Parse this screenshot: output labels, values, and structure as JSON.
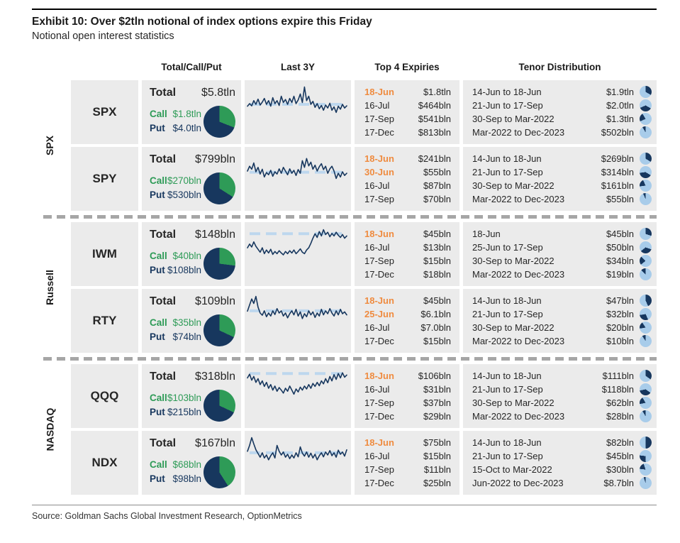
{
  "exhibit": {
    "title": "Exhibit 10: Over $2tln notional of index options expire this Friday",
    "subtitle": "Notional open interest statistics",
    "source": "Source: Goldman Sachs Global Investment Research, OptionMetrics"
  },
  "table_headers": {
    "tcp": "Total/Call/Put",
    "chart": "Last 3Y",
    "expiries": "Top 4 Expiries",
    "tenor": "Tenor Distribution"
  },
  "labels": {
    "total": "Total",
    "call": "Call",
    "put": "Put"
  },
  "colors": {
    "call_green": "#2E9B57",
    "put_navy": "#17375E",
    "highlight_orange": "#EF8B3F",
    "pie_light": "#A8CCEA",
    "ref_blue": "#BDD7EE",
    "cell_bg": "#EBEBEB",
    "separator_gray": "#A6A6A6"
  },
  "chart_data": {
    "type": "table",
    "groups": [
      {
        "label": "SPX"
      },
      {
        "label": "Russell"
      },
      {
        "label": "NASDAQ"
      }
    ],
    "rows": [
      {
        "ticker": "SPX",
        "total": "$5.8tln",
        "call": "$1.8tln",
        "put": "$4.0tln",
        "call_frac": 0.31,
        "expiries": [
          {
            "date": "18-Jun",
            "value": "$1.8tln",
            "highlight": true
          },
          {
            "date": "16-Jul",
            "value": "$464bln",
            "highlight": false
          },
          {
            "date": "17-Sep",
            "value": "$541bln",
            "highlight": false
          },
          {
            "date": "17-Dec",
            "value": "$813bln",
            "highlight": false
          }
        ],
        "tenors": [
          {
            "label": "14-Jun to 18-Jun",
            "value": "$1.9tln"
          },
          {
            "label": "21-Jun to 17-Sep",
            "value": "$2.0tln"
          },
          {
            "label": "30-Sep to Mar-2022",
            "value": "$1.3tln"
          },
          {
            "label": "Mar-2022 to Dec-2023",
            "value": "$502bln"
          }
        ],
        "tenor_fracs": [
          0.333,
          0.351,
          0.228,
          0.088
        ],
        "spark_ref": 0.5,
        "spark": [
          0.45,
          0.52,
          0.46,
          0.6,
          0.5,
          0.64,
          0.48,
          0.56,
          0.66,
          0.5,
          0.6,
          0.45,
          0.68,
          0.52,
          0.6,
          0.47,
          0.72,
          0.55,
          0.63,
          0.5,
          0.66,
          0.55,
          0.72,
          0.52,
          0.62,
          0.78,
          0.55,
          0.97,
          0.6,
          0.72,
          0.5,
          0.58,
          0.42,
          0.52,
          0.38,
          0.47,
          0.34,
          0.48,
          0.4,
          0.53,
          0.34,
          0.43,
          0.28,
          0.45,
          0.37,
          0.5,
          0.4,
          0.46
        ]
      },
      {
        "ticker": "SPY",
        "total": "$799bln",
        "call": "$270bln",
        "put": "$530bln",
        "call_frac": 0.34,
        "expiries": [
          {
            "date": "18-Jun",
            "value": "$241bln",
            "highlight": true
          },
          {
            "date": "30-Jun",
            "value": "$55bln",
            "highlight": true
          },
          {
            "date": "16-Jul",
            "value": "$87bln",
            "highlight": false
          },
          {
            "date": "17-Sep",
            "value": "$70bln",
            "highlight": false
          }
        ],
        "tenors": [
          {
            "label": "14-Jun to 18-Jun",
            "value": "$269bln"
          },
          {
            "label": "21-Jun to 17-Sep",
            "value": "$314bln"
          },
          {
            "label": "30-Sep to Mar-2022",
            "value": "$161bln"
          },
          {
            "label": "Mar-2022 to Dec-2023",
            "value": "$55bln"
          }
        ],
        "tenor_fracs": [
          0.337,
          0.393,
          0.202,
          0.068
        ],
        "spark_ref": 0.47,
        "spark": [
          0.5,
          0.63,
          0.55,
          0.72,
          0.48,
          0.6,
          0.42,
          0.55,
          0.34,
          0.46,
          0.4,
          0.52,
          0.36,
          0.48,
          0.42,
          0.56,
          0.44,
          0.6,
          0.5,
          0.4,
          0.56,
          0.44,
          0.52,
          0.38,
          0.54,
          0.44,
          0.78,
          0.6,
          0.84,
          0.64,
          0.74,
          0.55,
          0.66,
          0.5,
          0.62,
          0.7,
          0.54,
          0.63,
          0.44,
          0.56,
          0.63,
          0.5,
          0.3,
          0.44,
          0.34,
          0.48,
          0.38,
          0.44
        ]
      },
      {
        "ticker": "IWM",
        "total": "$148bln",
        "call": "$40bln",
        "put": "$108bln",
        "call_frac": 0.27,
        "expiries": [
          {
            "date": "18-Jun",
            "value": "$45bln",
            "highlight": true
          },
          {
            "date": "16-Jul",
            "value": "$13bln",
            "highlight": false
          },
          {
            "date": "17-Sep",
            "value": "$15bln",
            "highlight": false
          },
          {
            "date": "17-Dec",
            "value": "$18bln",
            "highlight": false
          }
        ],
        "tenors": [
          {
            "label": "18-Jun",
            "value": "$45bln"
          },
          {
            "label": "25-Jun to 17-Sep",
            "value": "$50bln"
          },
          {
            "label": "30-Sep to Mar-2022",
            "value": "$34bln"
          },
          {
            "label": "Mar-2022 to Dec-2023",
            "value": "$19bln"
          }
        ],
        "tenor_fracs": [
          0.304,
          0.338,
          0.23,
          0.128
        ],
        "spark_ref": 0.84,
        "spark": [
          0.46,
          0.56,
          0.48,
          0.62,
          0.5,
          0.42,
          0.34,
          0.46,
          0.3,
          0.4,
          0.32,
          0.42,
          0.28,
          0.36,
          0.3,
          0.38,
          0.32,
          0.27,
          0.36,
          0.3,
          0.38,
          0.32,
          0.4,
          0.3,
          0.36,
          0.43,
          0.34,
          0.3,
          0.4,
          0.46,
          0.58,
          0.72,
          0.84,
          0.74,
          0.9,
          0.78,
          0.95,
          0.82,
          0.88,
          0.76,
          0.85,
          0.78,
          0.88,
          0.8,
          0.74,
          0.82,
          0.72,
          0.78
        ]
      },
      {
        "ticker": "RTY",
        "total": "$109bln",
        "call": "$35bln",
        "put": "$74bln",
        "call_frac": 0.32,
        "expiries": [
          {
            "date": "18-Jun",
            "value": "$45bln",
            "highlight": true
          },
          {
            "date": "25-Jun",
            "value": "$6.1bln",
            "highlight": true
          },
          {
            "date": "16-Jul",
            "value": "$7.0bln",
            "highlight": false
          },
          {
            "date": "17-Dec",
            "value": "$15bln",
            "highlight": false
          }
        ],
        "tenors": [
          {
            "label": "14-Jun to 18-Jun",
            "value": "$47bln"
          },
          {
            "label": "21-Jun to 17-Sep",
            "value": "$32bln"
          },
          {
            "label": "30-Sep to Mar-2022",
            "value": "$20bln"
          },
          {
            "label": "Mar-2022 to Dec-2023",
            "value": "$10bln"
          }
        ],
        "tenor_fracs": [
          0.431,
          0.294,
          0.183,
          0.092
        ],
        "spark_ref": 0.56,
        "spark": [
          0.55,
          0.72,
          0.88,
          0.76,
          0.95,
          0.66,
          0.5,
          0.44,
          0.56,
          0.4,
          0.5,
          0.42,
          0.56,
          0.46,
          0.62,
          0.5,
          0.56,
          0.42,
          0.5,
          0.37,
          0.48,
          0.56,
          0.45,
          0.6,
          0.42,
          0.53,
          0.35,
          0.48,
          0.4,
          0.56,
          0.45,
          0.53,
          0.38,
          0.5,
          0.42,
          0.6,
          0.45,
          0.56,
          0.48,
          0.62,
          0.5,
          0.42,
          0.56,
          0.45,
          0.6,
          0.48,
          0.53,
          0.45
        ]
      },
      {
        "ticker": "QQQ",
        "total": "$318bln",
        "call": "$103bln",
        "put": "$215bln",
        "call_frac": 0.32,
        "expiries": [
          {
            "date": "18-Jun",
            "value": "$106bln",
            "highlight": true
          },
          {
            "date": "16-Jul",
            "value": "$31bln",
            "highlight": false
          },
          {
            "date": "17-Sep",
            "value": "$37bln",
            "highlight": false
          },
          {
            "date": "17-Dec",
            "value": "$29bln",
            "highlight": false
          }
        ],
        "tenors": [
          {
            "label": "14-Jun to 18-Jun",
            "value": "$111bln"
          },
          {
            "label": "21-Jun to 17-Sep",
            "value": "$118bln"
          },
          {
            "label": "30-Sep to Mar-2022",
            "value": "$62bln"
          },
          {
            "label": "Mar-2022 to Dec-2023",
            "value": "$28bln"
          }
        ],
        "tenor_fracs": [
          0.348,
          0.37,
          0.194,
          0.088
        ],
        "spark_ref": 0.9,
        "spark": [
          0.78,
          0.88,
          0.72,
          0.82,
          0.66,
          0.76,
          0.6,
          0.7,
          0.55,
          0.66,
          0.5,
          0.6,
          0.45,
          0.56,
          0.42,
          0.52,
          0.45,
          0.37,
          0.5,
          0.42,
          0.56,
          0.45,
          0.34,
          0.48,
          0.4,
          0.53,
          0.45,
          0.56,
          0.48,
          0.6,
          0.5,
          0.63,
          0.55,
          0.66,
          0.57,
          0.7,
          0.62,
          0.76,
          0.65,
          0.82,
          0.7,
          0.87,
          0.74,
          0.9,
          0.78,
          0.92,
          0.8,
          0.86
        ]
      },
      {
        "ticker": "NDX",
        "total": "$167bln",
        "call": "$68bln",
        "put": "$98bln",
        "call_frac": 0.41,
        "expiries": [
          {
            "date": "18-Jun",
            "value": "$75bln",
            "highlight": true
          },
          {
            "date": "16-Jul",
            "value": "$15bln",
            "highlight": false
          },
          {
            "date": "17-Sep",
            "value": "$11bln",
            "highlight": false
          },
          {
            "date": "17-Dec",
            "value": "$25bln",
            "highlight": false
          }
        ],
        "tenors": [
          {
            "label": "14-Jun to 18-Jun",
            "value": "$82bln"
          },
          {
            "label": "21-Jun to 17-Sep",
            "value": "$45bln"
          },
          {
            "label": "15-Oct to Mar-2022",
            "value": "$30bln"
          },
          {
            "label": "Jun-2022 to Dec-2023",
            "value": "$8.7bln"
          }
        ],
        "tenor_fracs": [
          0.495,
          0.272,
          0.181,
          0.052
        ],
        "spark_ref": 0.56,
        "spark": [
          0.6,
          0.76,
          0.97,
          0.8,
          0.64,
          0.54,
          0.44,
          0.56,
          0.42,
          0.5,
          0.37,
          0.48,
          0.56,
          0.42,
          0.76,
          0.6,
          0.5,
          0.58,
          0.44,
          0.52,
          0.4,
          0.5,
          0.42,
          0.56,
          0.45,
          0.72,
          0.55,
          0.47,
          0.58,
          0.44,
          0.55,
          0.42,
          0.52,
          0.37,
          0.48,
          0.56,
          0.45,
          0.58,
          0.5,
          0.62,
          0.48,
          0.56,
          0.44,
          0.63,
          0.52,
          0.58,
          0.47,
          0.64
        ]
      }
    ]
  }
}
